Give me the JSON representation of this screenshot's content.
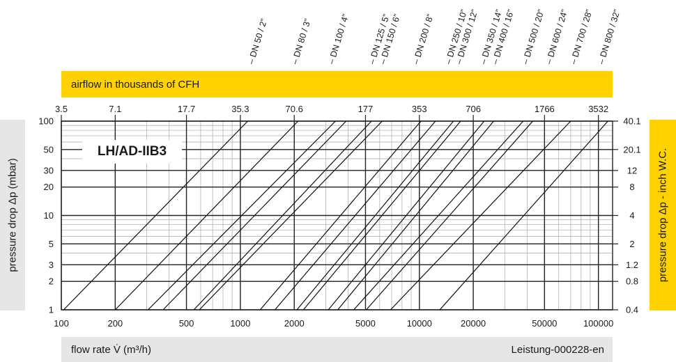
{
  "chart_data": {
    "type": "line",
    "title": "",
    "model_label": "LH/AD-IIB3",
    "top_axis_title": "airflow in thousands of CFH",
    "xlabel": "flow rate V̇ (m³/h)",
    "ylabel_left": "pressure drop Δp (mbar)",
    "ylabel_right": "pressure  drop Δp - inch W.C.",
    "doc_id": "Leistung-000228-en",
    "x_scale": "log",
    "y_scale": "log",
    "xlim": [
      100,
      120000
    ],
    "ylim": [
      1,
      100
    ],
    "grid": true,
    "x_ticks": [
      {
        "value": 100,
        "label": "100"
      },
      {
        "value": 200,
        "label": "200"
      },
      {
        "value": 500,
        "label": "500"
      },
      {
        "value": 1000,
        "label": "1000"
      },
      {
        "value": 2000,
        "label": "2000"
      },
      {
        "value": 5000,
        "label": "5000"
      },
      {
        "value": 10000,
        "label": "10000"
      },
      {
        "value": 20000,
        "label": "20000"
      },
      {
        "value": 50000,
        "label": "50000"
      },
      {
        "value": 100000,
        "label": "100000"
      }
    ],
    "y_ticks_left": [
      {
        "value": 1,
        "label": "1"
      },
      {
        "value": 2,
        "label": "2"
      },
      {
        "value": 3,
        "label": "3"
      },
      {
        "value": 5,
        "label": "5"
      },
      {
        "value": 10,
        "label": "10"
      },
      {
        "value": 20,
        "label": "20"
      },
      {
        "value": 30,
        "label": "30"
      },
      {
        "value": 50,
        "label": "50"
      },
      {
        "value": 100,
        "label": "100"
      }
    ],
    "y_ticks_right": [
      {
        "value": 1,
        "label": "0.4"
      },
      {
        "value": 2,
        "label": "0.8"
      },
      {
        "value": 3,
        "label": "1.2"
      },
      {
        "value": 5,
        "label": "2"
      },
      {
        "value": 10,
        "label": "4"
      },
      {
        "value": 20,
        "label": "8"
      },
      {
        "value": 30,
        "label": "12"
      },
      {
        "value": 50,
        "label": "20.1"
      },
      {
        "value": 100,
        "label": "40.1"
      }
    ],
    "top_ticks": [
      {
        "value": 100,
        "label": "3.5"
      },
      {
        "value": 200,
        "label": "7.1"
      },
      {
        "value": 500,
        "label": "17.7"
      },
      {
        "value": 1000,
        "label": "35.3"
      },
      {
        "value": 2000,
        "label": "70.6"
      },
      {
        "value": 5000,
        "label": "177"
      },
      {
        "value": 10000,
        "label": "353"
      },
      {
        "value": 20000,
        "label": "706"
      },
      {
        "value": 50000,
        "label": "1766"
      },
      {
        "value": 100000,
        "label": "3532"
      }
    ],
    "dn_sizes": [
      {
        "label": "DN 50 / 2”",
        "x": 1140
      },
      {
        "label": "DN 80 / 3”",
        "x": 2000
      },
      {
        "label": "DN 100 / 4”",
        "x": 3200
      },
      {
        "label": "DN 125 / 5”",
        "x": 5400
      },
      {
        "label": "DN 150 / 6”",
        "x": 6200
      },
      {
        "label": "DN 200 / 8”",
        "x": 9500
      },
      {
        "label": "DN 250 / 10”",
        "x": 14400
      },
      {
        "label": "DN 300 / 12”",
        "x": 16500
      },
      {
        "label": "DN 350 / 14”",
        "x": 22600
      },
      {
        "label": "DN 400 / 16”",
        "x": 26300
      },
      {
        "label": "DN 500 / 20”",
        "x": 38800
      },
      {
        "label": "DN 600 / 24”",
        "x": 52500
      },
      {
        "label": "DN 700 / 28”",
        "x": 72000
      },
      {
        "label": "DN 800 / 32”",
        "x": 103000
      }
    ],
    "series": [
      {
        "points": [
          [
            103,
            1
          ],
          [
            1100,
            100
          ]
        ]
      },
      {
        "points": [
          [
            200,
            1
          ],
          [
            2100,
            100
          ]
        ]
      },
      {
        "points": [
          [
            305,
            1
          ],
          [
            3400,
            100
          ]
        ]
      },
      {
        "points": [
          [
            370,
            1
          ],
          [
            3900,
            100
          ]
        ]
      },
      {
        "points": [
          [
            550,
            1
          ],
          [
            5400,
            100
          ]
        ]
      },
      {
        "points": [
          [
            590,
            1
          ],
          [
            6200,
            100
          ]
        ]
      },
      {
        "points": [
          [
            1290,
            1
          ],
          [
            10200,
            100
          ]
        ]
      },
      {
        "points": [
          [
            1560,
            1
          ],
          [
            12300,
            100
          ]
        ]
      },
      {
        "points": [
          [
            2070,
            1
          ],
          [
            15500,
            100
          ]
        ]
      },
      {
        "points": [
          [
            2250,
            1
          ],
          [
            17000,
            100
          ]
        ]
      },
      {
        "points": [
          [
            3100,
            1
          ],
          [
            23000,
            100
          ]
        ]
      },
      {
        "points": [
          [
            3500,
            1
          ],
          [
            26000,
            100
          ]
        ]
      },
      {
        "points": [
          [
            4300,
            1
          ],
          [
            38000,
            100
          ]
        ]
      },
      {
        "points": [
          [
            5050,
            1
          ],
          [
            43000,
            100
          ]
        ]
      },
      {
        "points": [
          [
            6900,
            1
          ],
          [
            70000,
            100
          ]
        ]
      },
      {
        "points": [
          [
            13000,
            1
          ],
          [
            113000,
            100
          ]
        ]
      }
    ]
  }
}
